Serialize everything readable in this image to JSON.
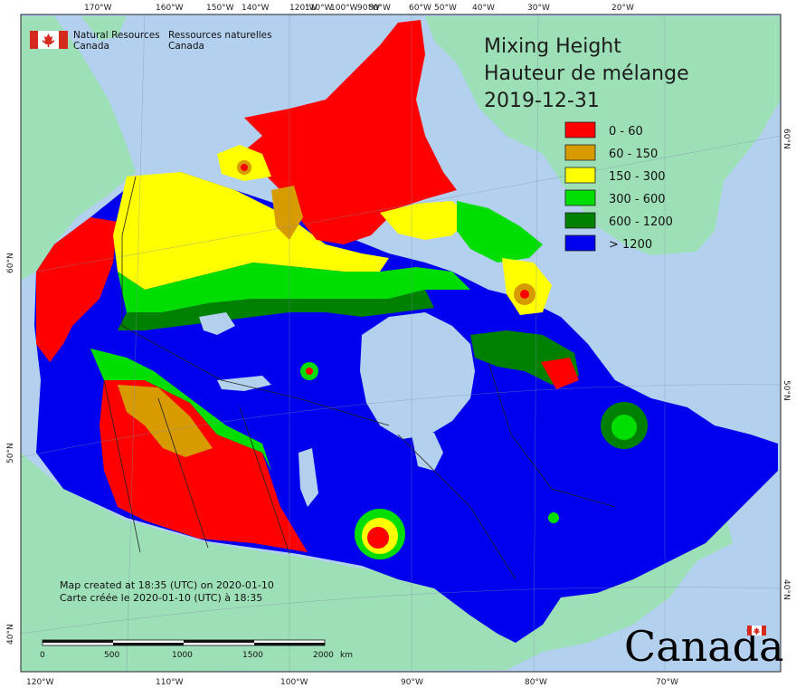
{
  "agency": {
    "name_en_line1": "Natural Resources",
    "name_en_line2": "Canada",
    "name_fr_line1": "Ressources naturelles",
    "name_fr_line2": "Canada"
  },
  "title": {
    "line1": "Mixing Height",
    "line2": "Hauteur de mélange",
    "date": "2019-12-31"
  },
  "legend": [
    {
      "label": "0 - 60",
      "color": "#ff0000"
    },
    {
      "label": "60 - 150",
      "color": "#d79b00"
    },
    {
      "label": "150 - 300",
      "color": "#ffff00"
    },
    {
      "label": "300 - 600",
      "color": "#00dd00"
    },
    {
      "label": "600 - 1200",
      "color": "#008000"
    },
    {
      "label": "> 1200",
      "color": "#0000ee"
    }
  ],
  "credits": {
    "line_en": "Map created at 18:35 (UTC) on 2020-01-10",
    "line_fr": "Carte créée le 2020-01-10 (UTC) à 18:35"
  },
  "scalebar": {
    "labels": [
      "0",
      "500",
      "1000",
      "1500",
      "2000"
    ],
    "unit": "km"
  },
  "wordmark": "Canada",
  "graticule": {
    "top": [
      "170°W",
      "160°W",
      "150°W",
      "140°W",
      "120°W",
      "110°W",
      "100°W",
      "90°W",
      "80°W",
      "60°W",
      "50°W",
      "40°W",
      "30°W",
      "20°W"
    ],
    "bottom": [
      "120°W",
      "110°W",
      "100°W",
      "90°W",
      "80°W",
      "70°W"
    ],
    "left": [
      "60°N",
      "50°N",
      "40°N"
    ],
    "right": [
      "60°N",
      "50°N",
      "40°N"
    ]
  },
  "colors": {
    "ocean": "#b3d1ef",
    "land": "#9de0b8",
    "border": "#222222"
  }
}
